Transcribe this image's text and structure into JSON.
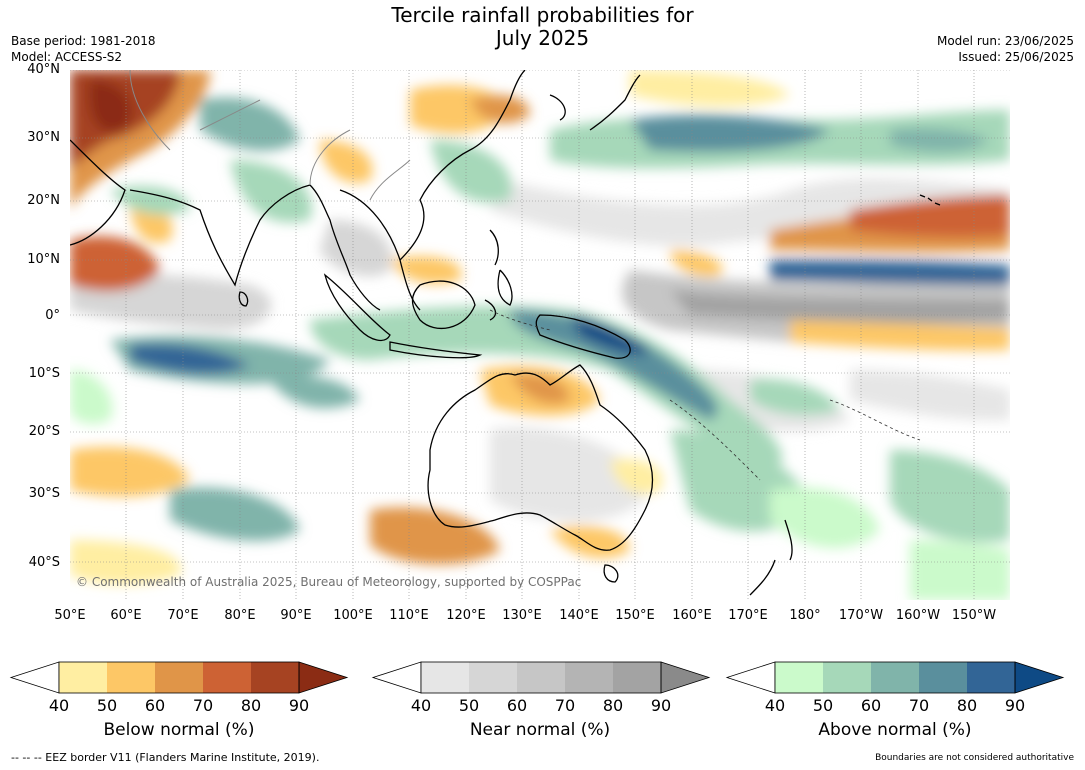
{
  "title_line1": "Tercile rainfall probabilities for",
  "title_line2": "July 2025",
  "base_period": "Base period: 1981-2018",
  "model": "Model: ACCESS-S2",
  "model_run": "Model run: 23/06/2025",
  "issued": "Issued: 25/06/2025",
  "copyright": "© Commonwealth of Australia 2025, Bureau of Meteorology, supported by COSPPac",
  "lat_labels": [
    "40°N",
    "30°N",
    "20°N",
    "10°N",
    "0°",
    "10°S",
    "20°S",
    "30°S",
    "40°S"
  ],
  "lon_labels": [
    "50°E",
    "60°E",
    "70°E",
    "80°E",
    "90°E",
    "100°E",
    "110°E",
    "120°E",
    "130°E",
    "140°E",
    "150°E",
    "160°E",
    "170°E",
    "180°",
    "170°W",
    "160°W",
    "150°W"
  ],
  "colorbars": [
    {
      "label": "Below normal (%)",
      "ticks": [
        "40",
        "50",
        "60",
        "70",
        "80",
        "90"
      ],
      "colors": [
        "#ffffff",
        "#ffeea2",
        "#fdc766",
        "#e09548",
        "#cd6234",
        "#a64322",
        "#8b2c14"
      ]
    },
    {
      "label": "Near normal (%)",
      "ticks": [
        "40",
        "50",
        "60",
        "70",
        "80",
        "90"
      ],
      "colors": [
        "#ffffff",
        "#e6e6e6",
        "#d6d6d6",
        "#c6c6c6",
        "#b4b4b4",
        "#a3a3a3",
        "#8a8a8a"
      ]
    },
    {
      "label": "Above normal (%)",
      "ticks": [
        "40",
        "50",
        "60",
        "70",
        "80",
        "90"
      ],
      "colors": [
        "#ffffff",
        "#cbfacb",
        "#a6d8b9",
        "#80b4aa",
        "#5a8f9d",
        "#326596",
        "#0e4a85"
      ]
    }
  ],
  "eez_note": "--  --  -- EEZ border V11 (Flanders Marine Institute, 2019).",
  "boundary_note": "Boundaries are not considered authoritative"
}
